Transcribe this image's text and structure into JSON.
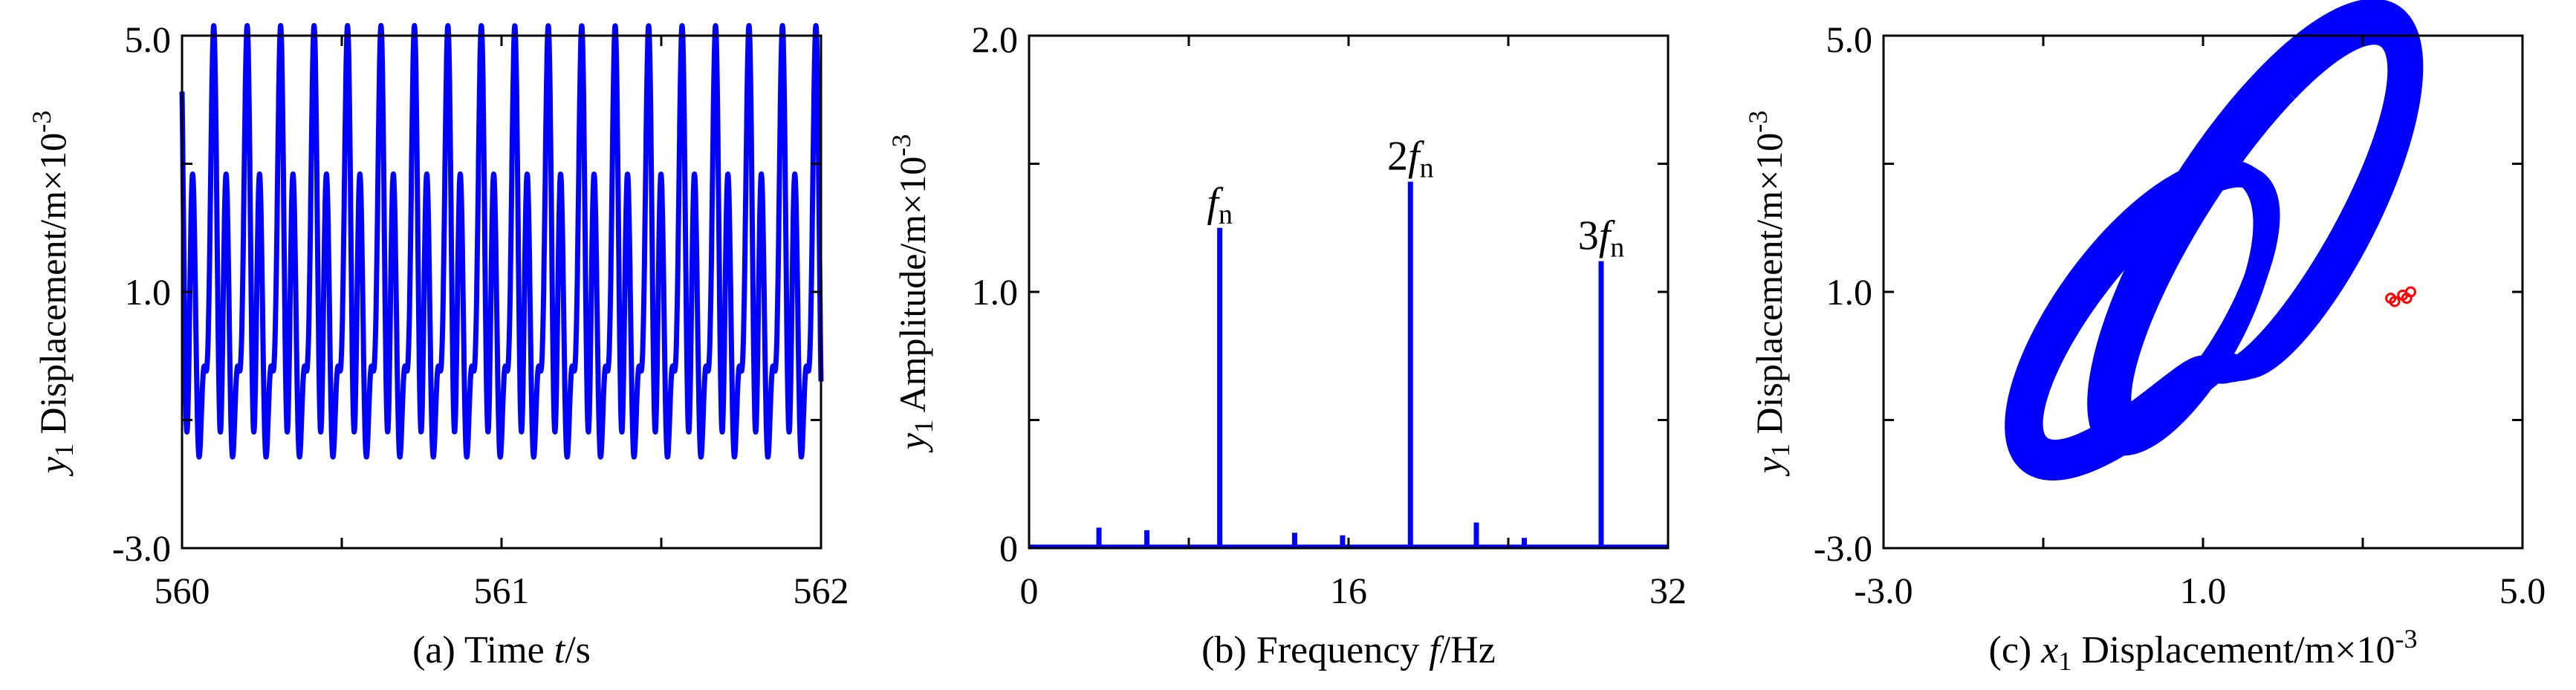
{
  "colors": {
    "series": "#0000ff",
    "highlight": "#ff0000",
    "axes": "#000000"
  },
  "chart_data": [
    {
      "type": "line",
      "caption": "(a) Time  t/s",
      "caption_parts": {
        "prefix": "(a) Time  ",
        "var": "t",
        "suffix": "/s"
      },
      "ylabel_parts": {
        "var": "y",
        "sub": "1",
        "text": " Displacement/m×10",
        "sup": "-3"
      },
      "xlim": [
        560,
        562
      ],
      "ylim": [
        -3.0,
        5.0
      ],
      "xticks": [
        "560",
        "561",
        "562"
      ],
      "yticks": [
        "-3.0",
        "1.0",
        "5.0"
      ],
      "series": [
        {
          "components": [
            {
              "freq": 9.55,
              "amp": 1.6,
              "phase": 0.0
            },
            {
              "freq": 19.1,
              "amp": 1.7,
              "phase": 1.4
            },
            {
              "freq": 28.65,
              "amp": 1.5,
              "phase": 0.6
            }
          ],
          "offset": 1.0
        }
      ]
    },
    {
      "type": "line",
      "caption": "(b) Frequency  f/Hz",
      "caption_parts": {
        "prefix": "(b) Frequency  ",
        "var": "f",
        "suffix": "/Hz"
      },
      "ylabel_parts": {
        "var": "y",
        "sub": "1",
        "text": " Amplitude/m×10",
        "sup": "-3"
      },
      "xlim": [
        0,
        32
      ],
      "ylim": [
        0,
        2.0
      ],
      "xticks": [
        "0",
        "16",
        "32"
      ],
      "yticks": [
        "0",
        "1.0",
        "2.0"
      ],
      "peaks": [
        {
          "f": 3.5,
          "a": 0.08
        },
        {
          "f": 5.9,
          "a": 0.07
        },
        {
          "f": 9.55,
          "a": 1.25,
          "label": {
            "coef": "",
            "var": "f",
            "sub": "n"
          }
        },
        {
          "f": 13.3,
          "a": 0.06
        },
        {
          "f": 15.7,
          "a": 0.05
        },
        {
          "f": 19.1,
          "a": 1.43,
          "label": {
            "coef": "2",
            "var": "f",
            "sub": "n"
          }
        },
        {
          "f": 22.4,
          "a": 0.1
        },
        {
          "f": 24.8,
          "a": 0.04
        },
        {
          "f": 28.65,
          "a": 1.12,
          "label": {
            "coef": "3",
            "var": "f",
            "sub": "n"
          }
        }
      ]
    },
    {
      "type": "line",
      "caption": "(c) x1 Displacement/m×10-3",
      "caption_parts": {
        "prefix": "(c) ",
        "var": "x",
        "sub": "1",
        "text": " Displacement/m×10",
        "sup": "-3"
      },
      "ylabel_parts": {
        "var": "y",
        "sub": "1",
        "text": " Displacement/m×10",
        "sup": "-3"
      },
      "xlim": [
        -3.0,
        5.0
      ],
      "ylim": [
        -3.0,
        5.0
      ],
      "xticks": [
        "-3.0",
        "1.0",
        "5.0"
      ],
      "yticks": [
        "-3.0",
        "1.0",
        "5.0"
      ],
      "orbit": {
        "x_components": [
          {
            "k": 1,
            "amp": 1.35,
            "phase": 0.55
          },
          {
            "k": 2,
            "amp": 0.9,
            "phase": 2.3
          },
          {
            "k": 3,
            "amp": 0.85,
            "phase": 1.2
          }
        ],
        "x_offset": 1.05,
        "y_components": [
          {
            "k": 1,
            "amp": 1.6,
            "phase": 0.0
          },
          {
            "k": 2,
            "amp": 1.7,
            "phase": 1.4
          },
          {
            "k": 3,
            "amp": 1.5,
            "phase": 0.6
          }
        ],
        "y_offset": 1.0
      },
      "poincare_points": [
        [
          3.35,
          0.9
        ],
        [
          3.5,
          0.95
        ],
        [
          3.6,
          1.0
        ],
        [
          3.4,
          0.85
        ],
        [
          3.55,
          0.9
        ]
      ]
    }
  ]
}
